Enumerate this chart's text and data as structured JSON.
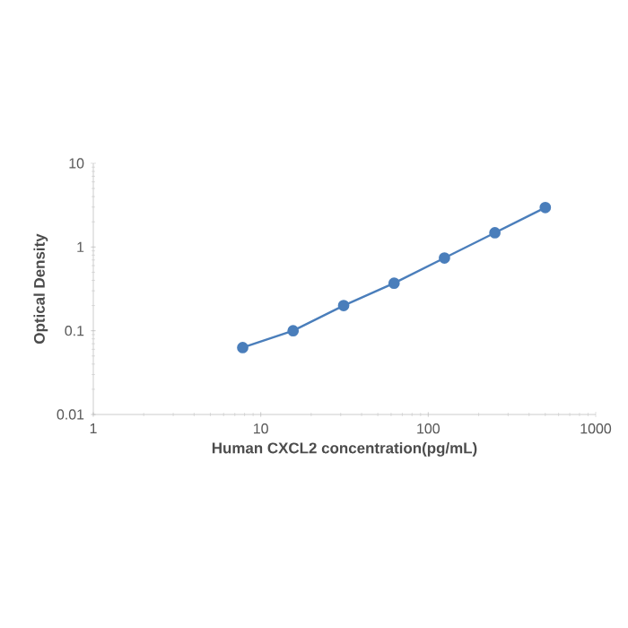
{
  "chart_data": {
    "type": "line",
    "xlabel": "Human CXCL2 concentration(pg/mL)",
    "ylabel": "Optical Density",
    "x": [
      7.8,
      15.6,
      31.25,
      62.5,
      125,
      250,
      500
    ],
    "series": [
      {
        "color": "#4a7ebb",
        "values": [
          0.063,
          0.1,
          0.2,
          0.37,
          0.74,
          1.48,
          2.96
        ]
      }
    ],
    "log": "xy",
    "xlim": [
      1,
      1000
    ],
    "ylim": [
      0.01,
      10
    ],
    "xticks": [
      1,
      10,
      100,
      1000
    ],
    "yticks": [
      0.01,
      0.1,
      1,
      10
    ],
    "grid": false,
    "marker": "circle",
    "line_style": "solid"
  }
}
